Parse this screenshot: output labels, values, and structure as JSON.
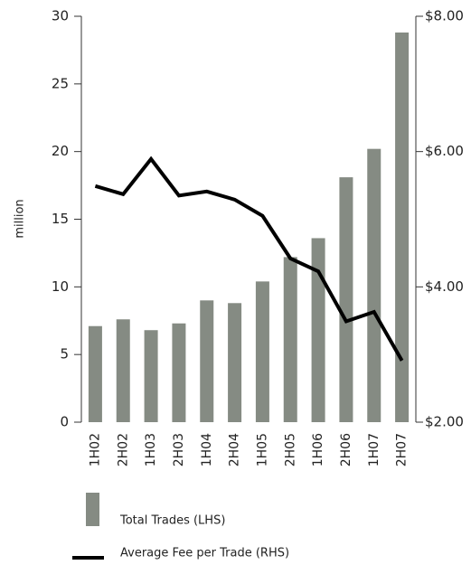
{
  "chart_data": {
    "type": "bar+line",
    "ylabel": "million",
    "categories": [
      "1H02",
      "2H02",
      "1H03",
      "2H03",
      "1H04",
      "2H04",
      "1H05",
      "2H05",
      "1H06",
      "2H06",
      "1H07",
      "2H07"
    ],
    "series": [
      {
        "name": "Total Trades (LHS)",
        "type": "bar",
        "color": "#858b83",
        "axis": "y",
        "values": [
          7.1,
          7.6,
          6.8,
          7.3,
          9.0,
          8.8,
          10.4,
          12.2,
          13.6,
          18.1,
          20.2,
          28.8
        ]
      },
      {
        "name": "Average Fee per Trade (RHS)",
        "type": "line",
        "color": "#000000",
        "axis": "y2",
        "values": [
          5.49,
          5.37,
          5.89,
          5.35,
          5.41,
          5.29,
          5.05,
          4.42,
          4.23,
          3.49,
          3.63,
          2.91
        ]
      }
    ],
    "ylim": [
      0,
      30
    ],
    "yticks": [
      0,
      5,
      10,
      15,
      20,
      25,
      30
    ],
    "y2lim": [
      2,
      8
    ],
    "y2ticks": [
      {
        "value": 2,
        "label": "$2.00"
      },
      {
        "value": 4,
        "label": "$4.00"
      },
      {
        "value": 6,
        "label": "$6.00"
      },
      {
        "value": 8,
        "label": "$8.00"
      }
    ]
  }
}
